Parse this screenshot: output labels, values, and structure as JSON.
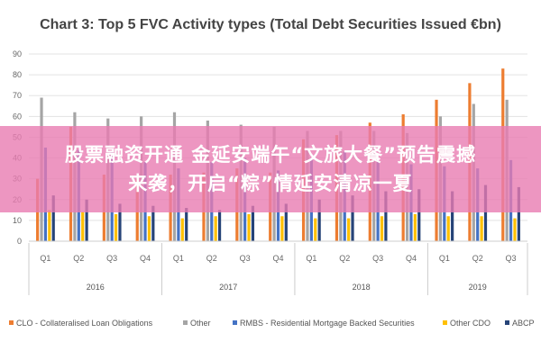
{
  "chart_data": {
    "type": "bar",
    "title": "Chart 3: Top 5 FVC Activity types (Total Debt Securities Issued €bn)",
    "ylim": [
      0,
      90
    ],
    "yticks": [
      "0",
      "10",
      "20",
      "30",
      "40",
      "50",
      "60",
      "70",
      "80",
      "90"
    ],
    "grid": true,
    "legend_position": "bottom",
    "categories": [
      "Q1",
      "Q2",
      "Q3",
      "Q4",
      "Q1",
      "Q2",
      "Q3",
      "Q4",
      "Q1",
      "Q2",
      "Q3",
      "Q4",
      "Q1",
      "Q2",
      "Q3"
    ],
    "years": [
      {
        "label": "2016",
        "count": 4
      },
      {
        "label": "2017",
        "count": 4
      },
      {
        "label": "2018",
        "count": 4
      },
      {
        "label": "2019",
        "count": 3
      }
    ],
    "series": [
      {
        "name": "CLO - Collateralised Loan Obligations",
        "color": "#ED7D31",
        "values": [
          30,
          55,
          32,
          30,
          32,
          33,
          35,
          33,
          49,
          51,
          57,
          61,
          68,
          76,
          83
        ]
      },
      {
        "name": "Other",
        "color": "#A5A5A5",
        "values": [
          69,
          62,
          59,
          60,
          62,
          58,
          56,
          55,
          53,
          53,
          53,
          52,
          60,
          66,
          68
        ]
      },
      {
        "name": "RMBS - Residential Mortgage Backed Securities",
        "color": "#4472C4",
        "values": [
          45,
          44,
          43,
          38,
          35,
          38,
          40,
          34,
          40,
          43,
          39,
          37,
          36,
          35,
          39
        ]
      },
      {
        "name": "Other CDO",
        "color": "#FFC000",
        "values": [
          15,
          14,
          13,
          12,
          11,
          12,
          13,
          12,
          11,
          11,
          12,
          13,
          12,
          12,
          11
        ]
      },
      {
        "name": "ABCP",
        "color": "#264478",
        "values": [
          22,
          20,
          18,
          17,
          16,
          15,
          17,
          18,
          20,
          22,
          24,
          25,
          24,
          27,
          26
        ]
      }
    ]
  },
  "banner": {
    "line1": "股票融资开通 金延安端午“文旅大餐”预告震撼",
    "line2": "来袭，开启“粽”情延安清凉一夏"
  }
}
